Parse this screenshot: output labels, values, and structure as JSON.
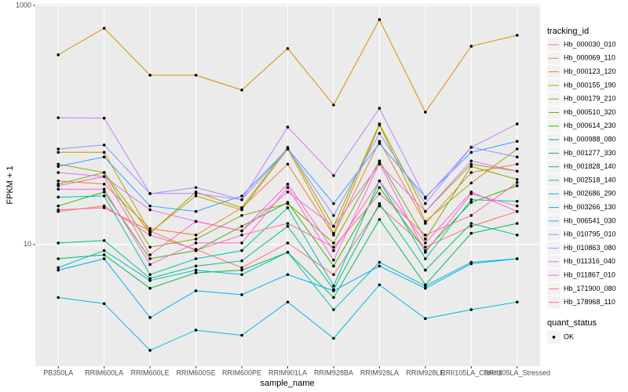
{
  "chart_data": {
    "type": "line",
    "x_label": "sample_name",
    "y_label": "FPKM + 1",
    "log_scale": true,
    "grid": true,
    "legend_title": "tracking_id",
    "point_legend": {
      "title": "quant_status",
      "labels": [
        "OK"
      ],
      "color": "#000000"
    },
    "categories": [
      "PB350LA",
      "RRIM600LA",
      "RRIM600LE",
      "RRIM600SE",
      "RRIM600PE",
      "RRIM901LA",
      "RRIM928BA",
      "RRIM928LA",
      "RRIM928LE",
      "RRII105LA_Control",
      "RRII105LA_Stressed"
    ],
    "ylim": [
      0.96,
      1030
    ],
    "yticks": [
      10,
      1000
    ],
    "series": [
      {
        "name": "Hb_000030_010",
        "color": "#F8766D",
        "values": [
          18.9,
          21,
          12,
          9.1,
          6.4,
          10.3,
          5.6,
          21,
          9.5,
          14.2,
          18.9
        ]
      },
      {
        "name": "Hb_000069_110",
        "color": "#EA8331",
        "values": [
          34,
          32,
          13.6,
          12,
          20.3,
          47,
          12,
          73,
          15,
          40,
          47
        ]
      },
      {
        "name": "Hb_000123_120",
        "color": "#D89000",
        "values": [
          386,
          645,
          261,
          261,
          196,
          436,
          147,
          762,
          128,
          456,
          563
        ]
      },
      {
        "name": "Hb_000155_190",
        "color": "#C09B00",
        "values": [
          59,
          59,
          12.6,
          25.5,
          19.5,
          63,
          12.4,
          100,
          15.6,
          32.7,
          63
        ]
      },
      {
        "name": "Hb_000179_210",
        "color": "#A3A500",
        "values": [
          47,
          40,
          12.4,
          27.5,
          20.3,
          65,
          14.2,
          102,
          18.9,
          47,
          41
        ]
      },
      {
        "name": "Hb_000510_320",
        "color": "#7CAE00",
        "values": [
          32,
          40,
          9.5,
          11.1,
          17.5,
          22,
          10.3,
          50,
          11.1,
          45,
          35
        ]
      },
      {
        "name": "Hb_000614_230",
        "color": "#39B600",
        "values": [
          21,
          27.5,
          7.6,
          8.9,
          14.2,
          22.5,
          6.6,
          30,
          8.9,
          22.5,
          31
        ]
      },
      {
        "name": "Hb_000988_080",
        "color": "#00BB4E",
        "values": [
          7.6,
          8.2,
          4.3,
          5.8,
          6.1,
          8.6,
          3.6,
          16.2,
          4.6,
          12.4,
          15
        ]
      },
      {
        "name": "Hb_001277_330",
        "color": "#00BF7D",
        "values": [
          10.3,
          10.8,
          5.2,
          6.6,
          7.3,
          14.2,
          4.2,
          22,
          6.1,
          15,
          12
        ]
      },
      {
        "name": "Hb_001828_140",
        "color": "#00C1A3",
        "values": [
          24.9,
          25.5,
          5.6,
          7.6,
          8.9,
          20.3,
          4.5,
          34,
          7.6,
          23.7,
          23
        ]
      },
      {
        "name": "Hb_002518_140",
        "color": "#00BFC4",
        "values": [
          6.4,
          8.9,
          5.0,
          6.1,
          5.6,
          8.6,
          2.85,
          7.1,
          4.5,
          7.1,
          7.6
        ]
      },
      {
        "name": "Hb_002686_290",
        "color": "#00BAE0",
        "values": [
          3.6,
          3.2,
          1.3,
          1.92,
          1.74,
          3.3,
          1.64,
          4.6,
          2.4,
          2.85,
          3.3
        ]
      },
      {
        "name": "Hb_003266_130",
        "color": "#00B0F6",
        "values": [
          6.1,
          7.6,
          2.45,
          4.1,
          3.8,
          5.6,
          4.1,
          6.6,
          4.3,
          6.9,
          7.6
        ]
      },
      {
        "name": "Hb_006541_030",
        "color": "#35A2FF",
        "values": [
          45,
          54,
          21,
          18.9,
          25.5,
          63,
          22,
          70,
          24.9,
          59,
          73
        ]
      },
      {
        "name": "Hb_010795_010",
        "color": "#9590FF",
        "values": [
          63,
          68,
          26.6,
          30,
          23.7,
          63,
          17.5,
          85,
          22,
          65,
          54
        ]
      },
      {
        "name": "Hb_010863_080",
        "color": "#C77CFF",
        "values": [
          115,
          114,
          26.7,
          26.7,
          23.7,
          96,
          37.8,
          138,
          24.4,
          65,
          102
        ]
      },
      {
        "name": "Hb_011316_040",
        "color": "#E76BF3",
        "values": [
          40,
          37,
          19.5,
          15.6,
          13,
          27.5,
          14.2,
          47,
          18.9,
          50,
          41
        ]
      },
      {
        "name": "Hb_011867_010",
        "color": "#FA62DB",
        "values": [
          29,
          29,
          6.8,
          10.3,
          10.3,
          30,
          7.4,
          48,
          8.6,
          26.6,
          21
        ]
      },
      {
        "name": "Hb_171900_080",
        "color": "#FF62BC",
        "values": [
          31,
          37,
          8.2,
          15.6,
          13,
          32,
          8.9,
          34,
          10.3,
          27.5,
          18.9
        ]
      },
      {
        "name": "Hb_178968_110",
        "color": "#FF6C91",
        "values": [
          19.5,
          20.3,
          13,
          8.9,
          12,
          15,
          9.5,
          26.6,
          12,
          17.5,
          33
        ]
      }
    ]
  }
}
